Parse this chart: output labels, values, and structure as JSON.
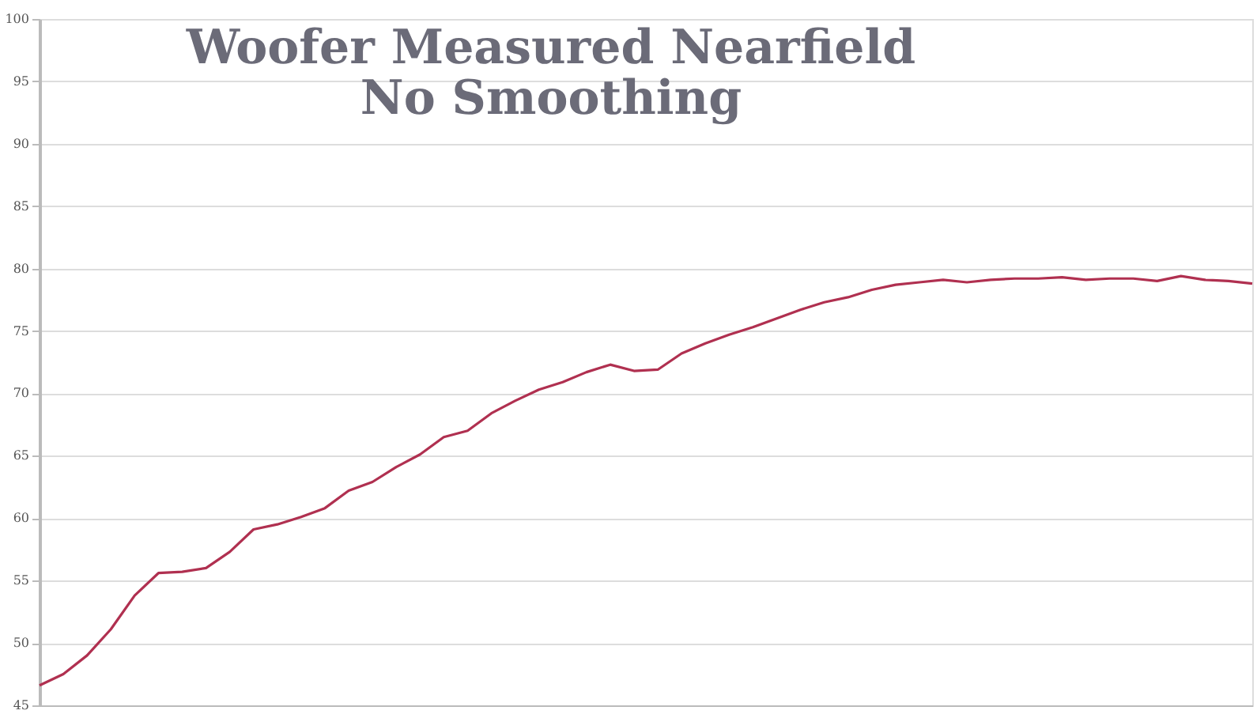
{
  "chart_data": {
    "type": "line",
    "title": [
      "Woofer Measured Nearfield",
      "No Smoothing"
    ],
    "categories": [
      null,
      null,
      null,
      null,
      null,
      null,
      null,
      null,
      null,
      null,
      null,
      null,
      null,
      null,
      null,
      null,
      null,
      null,
      null,
      null,
      null,
      null,
      null,
      null,
      null,
      null,
      null,
      null,
      null,
      null,
      null,
      null,
      null,
      null,
      null,
      null,
      null,
      null,
      null,
      null,
      null,
      null,
      null,
      null,
      null,
      null,
      null,
      null,
      null,
      null,
      null,
      null
    ],
    "ylim": [
      45,
      100
    ],
    "yticks": [
      45,
      50,
      55,
      60,
      65,
      70,
      75,
      80,
      85,
      90,
      95,
      100
    ],
    "grid": "y",
    "tick_labels": "y",
    "line_style": "solid",
    "series": [
      {
        "color": "#b03050",
        "values": [
          46.6,
          47.5,
          49.0,
          51.1,
          53.8,
          55.6,
          55.7,
          56.0,
          57.3,
          59.1,
          59.5,
          60.1,
          60.8,
          62.2,
          62.9,
          64.1,
          65.1,
          66.5,
          67.0,
          68.4,
          69.4,
          70.3,
          70.9,
          71.7,
          72.3,
          71.8,
          71.9,
          73.2,
          74.0,
          74.7,
          75.3,
          76.0,
          76.7,
          77.3,
          77.7,
          78.3,
          78.7,
          78.9,
          79.1,
          78.9,
          79.1,
          79.2,
          79.2,
          79.3,
          79.1,
          79.2,
          79.2,
          79.0,
          79.4,
          79.1,
          79.0,
          78.8
        ]
      }
    ]
  }
}
